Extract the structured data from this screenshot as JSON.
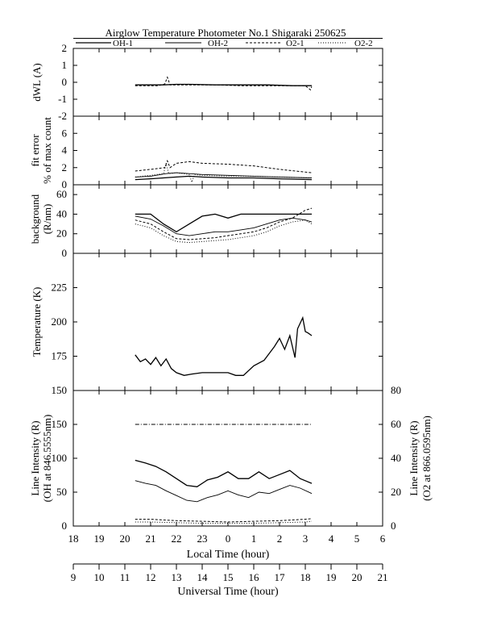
{
  "title": "Airglow Temperature Photometer No.1  Shigaraki   250625",
  "legend": [
    {
      "label": "OH-1",
      "style": "s-solid"
    },
    {
      "label": "OH-2",
      "style": "s-thin"
    },
    {
      "label": "O2-1",
      "style": "s-dash"
    },
    {
      "label": "O2-2",
      "style": "s-dot"
    }
  ],
  "chart_data": {
    "type": "line",
    "x_local_hours": [
      18,
      19,
      20,
      21,
      22,
      23,
      0,
      1,
      2,
      3,
      4,
      5,
      6
    ],
    "x_ticks_local": [
      "18",
      "19",
      "20",
      "21",
      "22",
      "23",
      "0",
      "1",
      "2",
      "3",
      "4",
      "5",
      "6"
    ],
    "x_ticks_ut": [
      "9",
      "10",
      "11",
      "12",
      "13",
      "14",
      "15",
      "16",
      "17",
      "18",
      "19",
      "20",
      "21"
    ],
    "xlabel_local": "Local Time (hour)",
    "xlabel_ut": "Universal Time (hour)",
    "panels": [
      {
        "id": "dwl",
        "ylabel": [
          "dWL (A)"
        ],
        "ylim": [
          -2,
          2
        ],
        "yticks": [
          "2",
          "1",
          "0",
          "-1",
          "-2"
        ],
        "series": [
          {
            "style": "s-solid",
            "x": [
              20.4,
              21.5,
              22.0,
              22.5,
              23.5,
              0.5,
              1.5,
              2.5,
              3.25
            ],
            "y": [
              -0.15,
              -0.15,
              -0.12,
              -0.12,
              -0.15,
              -0.15,
              -0.15,
              -0.2,
              -0.2
            ]
          },
          {
            "style": "s-dash",
            "x": [
              20.4,
              21.3,
              21.55,
              21.65,
              21.75,
              22.5,
              23.5,
              0.5,
              1.5,
              2.5,
              3.0,
              3.2,
              3.25
            ],
            "y": [
              -0.2,
              -0.2,
              -0.1,
              0.3,
              -0.15,
              -0.15,
              -0.15,
              -0.2,
              -0.2,
              -0.2,
              -0.2,
              -0.45,
              -0.25
            ]
          }
        ]
      },
      {
        "id": "fit",
        "ylabel": [
          "fit error",
          "% of max count"
        ],
        "ylim": [
          0,
          8
        ],
        "yticks": [
          "6",
          "4",
          "2",
          "0"
        ],
        "series": [
          {
            "style": "s-solid",
            "x": [
              20.4,
              21.0,
              22.0,
              22.5,
              23.0,
              0.0,
              1.0,
              2.0,
              3.25
            ],
            "y": [
              0.6,
              0.7,
              0.9,
              1.0,
              0.9,
              0.8,
              0.8,
              0.7,
              0.6
            ]
          },
          {
            "style": "s-thin",
            "x": [
              20.4,
              21.0,
              21.6,
              22.0,
              22.5,
              23.0,
              0.0,
              1.0,
              2.0,
              3.25
            ],
            "y": [
              0.9,
              1.0,
              1.3,
              1.4,
              1.3,
              1.2,
              1.1,
              1.0,
              0.9,
              0.8
            ]
          },
          {
            "style": "s-dash",
            "x": [
              20.4,
              21.0,
              21.55,
              21.65,
              21.75,
              22.0,
              22.5,
              23.0,
              0.0,
              1.0,
              2.0,
              3.25
            ],
            "y": [
              1.6,
              1.8,
              2.0,
              2.8,
              2.0,
              2.5,
              2.7,
              2.5,
              2.4,
              2.2,
              1.8,
              1.4
            ]
          },
          {
            "style": "s-dot",
            "x": [
              20.4,
              21.0,
              21.5,
              21.6,
              21.7,
              22.0,
              22.5,
              22.6,
              22.7,
              23.0,
              0.0,
              1.0,
              2.0,
              3.25
            ],
            "y": [
              0.9,
              1.1,
              1.3,
              2.5,
              1.3,
              1.4,
              1.2,
              0.3,
              1.2,
              1.1,
              1.0,
              1.0,
              0.9,
              0.8
            ]
          }
        ]
      },
      {
        "id": "bg",
        "ylabel": [
          "background",
          "(R/nm)"
        ],
        "ylim": [
          0,
          70
        ],
        "yticks": [
          "60",
          "40",
          "20",
          "0"
        ],
        "series": [
          {
            "style": "s-solid",
            "x": [
              20.4,
              21.0,
              21.5,
              22.0,
              22.5,
              23.0,
              23.5,
              0.0,
              0.5,
              1.0,
              1.5,
              2.0,
              2.5,
              3.0,
              3.25
            ],
            "y": [
              40,
              40,
              30,
              22,
              30,
              38,
              40,
              36,
              40,
              40,
              40,
              40,
              40,
              40,
              40
            ]
          },
          {
            "style": "s-thin",
            "x": [
              20.4,
              21.0,
              21.5,
              22.0,
              22.5,
              23.0,
              23.5,
              0.0,
              0.5,
              1.0,
              1.5,
              2.0,
              2.5,
              3.0,
              3.25
            ],
            "y": [
              38,
              35,
              28,
              20,
              18,
              20,
              22,
              22,
              24,
              26,
              30,
              34,
              36,
              34,
              32
            ]
          },
          {
            "style": "s-dash",
            "x": [
              20.4,
              21.0,
              21.5,
              22.0,
              22.5,
              23.0,
              23.5,
              0.0,
              0.5,
              1.0,
              1.5,
              2.0,
              2.5,
              3.0,
              3.25
            ],
            "y": [
              34,
              30,
              22,
              15,
              14,
              15,
              16,
              18,
              20,
              22,
              26,
              32,
              36,
              44,
              46
            ]
          },
          {
            "style": "s-dot",
            "x": [
              20.4,
              21.0,
              21.5,
              22.0,
              22.5,
              23.0,
              23.5,
              0.0,
              0.5,
              1.0,
              1.5,
              2.0,
              2.5,
              3.0,
              3.25
            ],
            "y": [
              30,
              26,
              18,
              12,
              11,
              12,
              13,
              14,
              16,
              18,
              22,
              28,
              32,
              34,
              30
            ]
          }
        ]
      },
      {
        "id": "temp",
        "ylabel": [
          "Temperature (K)"
        ],
        "ylim": [
          150,
          250
        ],
        "yticks": [
          "225",
          "200",
          "175",
          "150"
        ],
        "series": [
          {
            "style": "s-solid",
            "x": [
              20.4,
              20.6,
              20.8,
              21.0,
              21.2,
              21.4,
              21.6,
              21.8,
              22.0,
              22.3,
              22.6,
              23.0,
              23.5,
              0.0,
              0.3,
              0.6,
              1.0,
              1.4,
              1.8,
              2.0,
              2.2,
              2.4,
              2.6,
              2.7,
              2.9,
              3.0,
              3.1,
              3.25
            ],
            "y": [
              176,
              171,
              173,
              169,
              174,
              168,
              173,
              166,
              163,
              161,
              162,
              163,
              163,
              163,
              161,
              161,
              168,
              172,
              182,
              188,
              180,
              190,
              174,
              195,
              203,
              193,
              192,
              190
            ]
          }
        ]
      },
      {
        "id": "int",
        "ylabel": [
          "Line Intensity (R)",
          "(OH at 846.5555nm)"
        ],
        "ylabel_right": [
          "Line Intensity (R)",
          "(O2 at 866.0595nm)"
        ],
        "ylim": [
          0,
          200
        ],
        "ylim_right": [
          0,
          80
        ],
        "yticks": [
          "150",
          "100",
          "50",
          "0"
        ],
        "yticks_right": [
          "80",
          "60",
          "40",
          "20",
          "0"
        ],
        "series": [
          {
            "style": "s-dashdot",
            "x": [
              20.4,
              3.25
            ],
            "y": [
              150,
              150
            ]
          },
          {
            "style": "s-solid",
            "x": [
              20.4,
              20.8,
              21.2,
              21.6,
              22.0,
              22.4,
              22.8,
              23.2,
              23.6,
              0.0,
              0.4,
              0.8,
              1.2,
              1.6,
              2.0,
              2.4,
              2.8,
              3.25
            ],
            "y": [
              97,
              93,
              88,
              80,
              70,
              60,
              58,
              68,
              72,
              80,
              70,
              70,
              80,
              70,
              76,
              82,
              70,
              63
            ]
          },
          {
            "style": "s-thin",
            "x": [
              20.4,
              20.8,
              21.2,
              21.6,
              22.0,
              22.4,
              22.8,
              23.2,
              23.6,
              0.0,
              0.4,
              0.8,
              1.2,
              1.6,
              2.0,
              2.4,
              2.8,
              3.25
            ],
            "y": [
              67,
              63,
              60,
              52,
              45,
              38,
              36,
              42,
              46,
              52,
              46,
              42,
              50,
              48,
              54,
              60,
              56,
              48
            ]
          },
          {
            "style": "s-dash",
            "x": [
              20.4,
              21.0,
              22.0,
              23.0,
              0.0,
              1.0,
              2.0,
              3.0,
              3.25
            ],
            "y": [
              10,
              10,
              8,
              7,
              6,
              7,
              8,
              10,
              11
            ]
          },
          {
            "style": "s-dot",
            "x": [
              20.4,
              21.0,
              22.0,
              23.0,
              0.0,
              1.0,
              2.0,
              3.0,
              3.25
            ],
            "y": [
              6,
              6,
              5,
              4,
              4,
              4,
              5,
              6,
              7
            ]
          }
        ]
      }
    ]
  }
}
